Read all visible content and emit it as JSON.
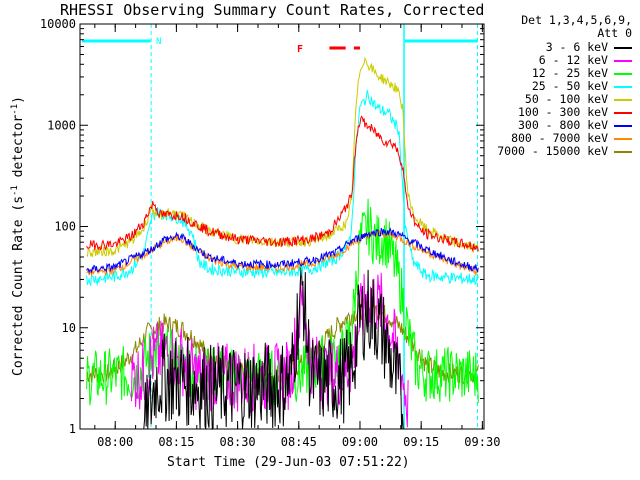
{
  "chart_data": {
    "type": "line",
    "title": "RHESSI Observing Summary Count Rates, Corrected",
    "xlabel": "Start Time (29-Jun-03 07:51:22)",
    "ylabel": "Corrected Count Rate (s^-1 detector^-1)",
    "ylabel_parts": {
      "main": "Corrected Count Rate (s",
      "sup1": "-1",
      "mid": " detector",
      "sup2": "-1",
      "end": ")"
    },
    "y_scale": "log",
    "ylim": [
      1,
      10000
    ],
    "y_ticks": [
      1,
      10,
      100,
      1000,
      10000
    ],
    "y_tick_labels": [
      "1",
      "10",
      "100",
      "1000",
      "10000"
    ],
    "x_range_minutes": [
      51.37,
      150.4
    ],
    "x_ticks": [
      60,
      75,
      90,
      105,
      120,
      135,
      150
    ],
    "x_tick_labels": [
      "08:00",
      "08:15",
      "08:30",
      "08:45",
      "09:00",
      "09:15",
      "09:30"
    ],
    "legend_header": [
      "Det 1,3,4,5,6,9,",
      "Att 0"
    ],
    "legend_position": "right",
    "flag_labels": [
      {
        "text": "N",
        "color": "#00ffff"
      },
      {
        "text": "F",
        "color": "#ff0000"
      }
    ],
    "series": [
      {
        "name": "3 - 6 keV",
        "color": "#000000"
      },
      {
        "name": "6 - 12 keV",
        "color": "#ff00ff"
      },
      {
        "name": "12 - 25 keV",
        "color": "#00ff00"
      },
      {
        "name": "25 - 50 keV",
        "color": "#00ffff"
      },
      {
        "name": "50 - 100 keV",
        "color": "#cccc00"
      },
      {
        "name": "100 - 300 keV",
        "color": "#ff0000"
      },
      {
        "name": "300 - 800 keV",
        "color": "#0000ff"
      },
      {
        "name": "800 - 7000 keV",
        "color": "#ff8800"
      },
      {
        "name": "7000 - 15000 keV",
        "color": "#888800"
      }
    ],
    "traces": {
      "25 - 50 keV": [
        [
          53,
          30
        ],
        [
          60,
          32
        ],
        [
          64,
          38
        ],
        [
          67,
          55
        ],
        [
          69,
          120
        ],
        [
          70,
          140
        ],
        [
          73,
          130
        ],
        [
          76,
          120
        ],
        [
          79,
          85
        ],
        [
          80.5,
          45
        ],
        [
          83,
          38
        ],
        [
          90,
          36
        ],
        [
          100,
          35
        ],
        [
          108,
          38
        ],
        [
          114,
          48
        ],
        [
          117,
          65
        ],
        [
          118,
          100
        ],
        [
          119,
          600
        ],
        [
          120,
          1500
        ],
        [
          122,
          2000
        ],
        [
          124,
          1500
        ],
        [
          127,
          1300
        ],
        [
          129.5,
          900
        ],
        [
          130.5,
          250
        ],
        [
          131,
          100
        ],
        [
          133,
          45
        ],
        [
          136,
          33
        ],
        [
          143,
          31
        ],
        [
          149,
          30
        ]
      ],
      "50 - 100 keV": [
        [
          53,
          55
        ],
        [
          60,
          58
        ],
        [
          64,
          72
        ],
        [
          67,
          95
        ],
        [
          69,
          160
        ],
        [
          70,
          120
        ],
        [
          73,
          140
        ],
        [
          76,
          130
        ],
        [
          79,
          110
        ],
        [
          83,
          90
        ],
        [
          90,
          75
        ],
        [
          100,
          70
        ],
        [
          108,
          72
        ],
        [
          112,
          80
        ],
        [
          114,
          90
        ],
        [
          117,
          110
        ],
        [
          118,
          200
        ],
        [
          119,
          1500
        ],
        [
          120,
          3500
        ],
        [
          121,
          4500
        ],
        [
          124,
          3200
        ],
        [
          129,
          2300
        ],
        [
          130.5,
          1500
        ],
        [
          131.5,
          250
        ],
        [
          133,
          130
        ],
        [
          136,
          95
        ],
        [
          143,
          70
        ],
        [
          149,
          60
        ]
      ],
      "100 - 300 keV": [
        [
          53,
          65
        ],
        [
          60,
          67
        ],
        [
          64,
          80
        ],
        [
          67,
          110
        ],
        [
          68.5,
          150
        ],
        [
          69.5,
          170
        ],
        [
          71,
          130
        ],
        [
          76,
          130
        ],
        [
          79,
          110
        ],
        [
          83,
          90
        ],
        [
          90,
          75
        ],
        [
          100,
          70
        ],
        [
          108,
          75
        ],
        [
          112,
          85
        ],
        [
          115,
          120
        ],
        [
          118,
          200
        ],
        [
          119,
          700
        ],
        [
          120,
          1150
        ],
        [
          123,
          900
        ],
        [
          126,
          700
        ],
        [
          128.5,
          650
        ],
        [
          130.5,
          400
        ],
        [
          131.5,
          170
        ],
        [
          134,
          100
        ],
        [
          136,
          85
        ],
        [
          143,
          70
        ],
        [
          149,
          62
        ]
      ],
      "300 - 800 keV": [
        [
          53,
          37
        ],
        [
          60,
          40
        ],
        [
          64,
          48
        ],
        [
          69,
          60
        ],
        [
          72,
          75
        ],
        [
          76,
          80
        ],
        [
          79,
          65
        ],
        [
          83,
          50
        ],
        [
          90,
          43
        ],
        [
          100,
          42
        ],
        [
          108,
          46
        ],
        [
          114,
          55
        ],
        [
          118,
          72
        ],
        [
          122,
          85
        ],
        [
          126,
          90
        ],
        [
          129,
          85
        ],
        [
          133,
          70
        ],
        [
          136,
          60
        ],
        [
          143,
          45
        ],
        [
          149,
          38
        ]
      ],
      "800 - 7000 keV": [
        [
          53,
          35
        ],
        [
          60,
          37
        ],
        [
          64,
          45
        ],
        [
          69,
          58
        ],
        [
          72,
          70
        ],
        [
          76,
          78
        ],
        [
          79,
          62
        ],
        [
          83,
          48
        ],
        [
          90,
          40
        ],
        [
          100,
          39
        ],
        [
          108,
          43
        ],
        [
          114,
          52
        ],
        [
          118,
          68
        ],
        [
          122,
          82
        ],
        [
          126,
          85
        ],
        [
          129,
          80
        ],
        [
          133,
          65
        ],
        [
          136,
          57
        ],
        [
          143,
          43
        ],
        [
          149,
          35
        ]
      ],
      "7000 - 15000 keV": [
        [
          53,
          3.5
        ],
        [
          58,
          3.5
        ],
        [
          62,
          4.5
        ],
        [
          65,
          6
        ],
        [
          68,
          9
        ],
        [
          72,
          11
        ],
        [
          76,
          10
        ],
        [
          80,
          7.5
        ],
        [
          84,
          4.5
        ],
        [
          90,
          3.8
        ],
        [
          100,
          3.5
        ],
        [
          104,
          4
        ],
        [
          108,
          5
        ],
        [
          112,
          8
        ],
        [
          116,
          12
        ],
        [
          120,
          15
        ],
        [
          124,
          15
        ],
        [
          127,
          13
        ],
        [
          130,
          10
        ],
        [
          133,
          7
        ],
        [
          136,
          4.5
        ],
        [
          140,
          3.6
        ],
        [
          149,
          3.5
        ]
      ],
      "12 - 25 keV": [
        [
          53,
          3.2
        ],
        [
          58,
          3.3
        ],
        [
          62,
          3.5
        ],
        [
          64,
          3.2
        ],
        [
          66,
          3.5
        ],
        [
          68,
          5
        ],
        [
          70,
          6
        ],
        [
          74,
          5
        ],
        [
          78,
          4
        ],
        [
          82,
          3.5
        ],
        [
          90,
          3.3
        ],
        [
          100,
          3.2
        ],
        [
          106,
          3.5
        ],
        [
          110,
          4.5
        ],
        [
          113,
          5
        ],
        [
          116,
          5.5
        ],
        [
          118,
          10
        ],
        [
          120,
          70
        ],
        [
          122,
          100
        ],
        [
          124,
          70
        ],
        [
          126,
          80
        ],
        [
          128,
          50
        ],
        [
          130,
          25
        ],
        [
          132,
          8
        ],
        [
          134,
          4
        ],
        [
          136,
          3.5
        ],
        [
          149,
          3.4
        ]
      ],
      "6 - 12 keV": [
        [
          64,
          3.2
        ],
        [
          67,
          3.5
        ],
        [
          69,
          5
        ],
        [
          72,
          5.5
        ],
        [
          76,
          5
        ],
        [
          78,
          4
        ],
        [
          80,
          3.3
        ],
        [
          90,
          3.2
        ],
        [
          100,
          3.2
        ],
        [
          103,
          3.5
        ],
        [
          105,
          12
        ],
        [
          106,
          20
        ],
        [
          107,
          10
        ],
        [
          108,
          5
        ],
        [
          110,
          3.5
        ],
        [
          116,
          3.6
        ],
        [
          118,
          4.5
        ],
        [
          120,
          12
        ],
        [
          122,
          20
        ],
        [
          124,
          18
        ],
        [
          126,
          15
        ],
        [
          128,
          8
        ],
        [
          130,
          4
        ],
        [
          132,
          1.5
        ]
      ],
      "3 - 6 keV": [
        [
          67,
          1
        ],
        [
          68.5,
          1.5
        ],
        [
          69,
          2
        ],
        [
          70,
          3
        ],
        [
          72,
          3.2
        ],
        [
          76,
          3
        ],
        [
          80,
          2.8
        ],
        [
          84,
          2.5
        ],
        [
          90,
          2.6
        ],
        [
          100,
          2.7
        ],
        [
          103,
          3
        ],
        [
          105,
          15
        ],
        [
          106,
          25
        ],
        [
          107,
          8
        ],
        [
          108,
          3
        ],
        [
          113,
          3
        ],
        [
          116,
          3.2
        ],
        [
          118,
          4
        ],
        [
          120,
          12
        ],
        [
          122,
          15
        ],
        [
          124,
          12
        ],
        [
          126,
          8
        ],
        [
          128,
          4
        ],
        [
          130,
          2
        ],
        [
          131,
          1
        ]
      ]
    }
  }
}
